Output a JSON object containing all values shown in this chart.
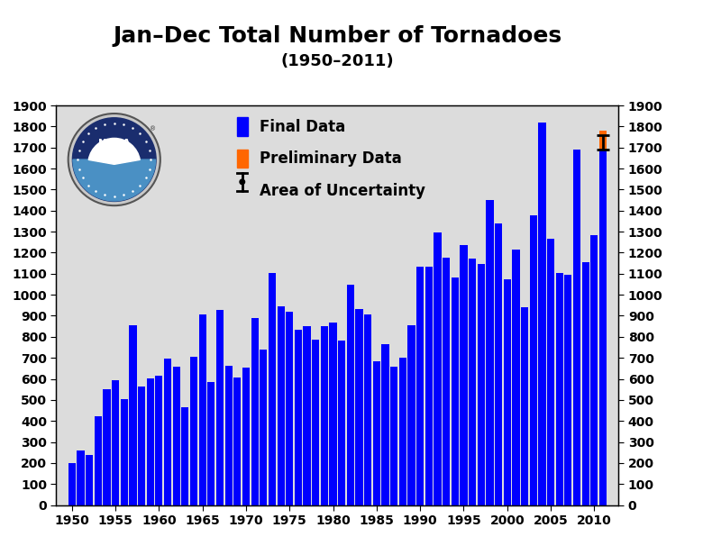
{
  "title": "Jan–Dec Total Number of Tornadoes",
  "subtitle": "(1950–2011)",
  "background_color": "#dcdcdc",
  "bar_color": "#0000ff",
  "prelim_color": "#ff6600",
  "years": [
    1950,
    1951,
    1952,
    1953,
    1954,
    1955,
    1956,
    1957,
    1958,
    1959,
    1960,
    1961,
    1962,
    1963,
    1964,
    1965,
    1966,
    1967,
    1968,
    1969,
    1970,
    1971,
    1972,
    1973,
    1974,
    1975,
    1976,
    1977,
    1978,
    1979,
    1980,
    1981,
    1982,
    1983,
    1984,
    1985,
    1986,
    1987,
    1988,
    1989,
    1990,
    1991,
    1992,
    1993,
    1994,
    1995,
    1996,
    1997,
    1998,
    1999,
    2000,
    2001,
    2002,
    2003,
    2004,
    2005,
    2006,
    2007,
    2008,
    2009,
    2010,
    2011
  ],
  "final_values": [
    201,
    260,
    240,
    421,
    550,
    593,
    504,
    856,
    564,
    604,
    616,
    697,
    657,
    464,
    704,
    906,
    585,
    926,
    660,
    608,
    653,
    888,
    741,
    1102,
    947,
    919,
    835,
    852,
    788,
    852,
    866,
    783,
    1046,
    931,
    907,
    684,
    764,
    656,
    702,
    856,
    1133,
    1132,
    1298,
    1176,
    1082,
    1235,
    1173,
    1148,
    1449,
    1340,
    1075,
    1215,
    939,
    1376,
    1819,
    1265,
    1103,
    1096,
    1692,
    1156,
    1282,
    1690
  ],
  "prelim_value": 90,
  "uncertainty_low": 1690,
  "uncertainty_high": 1760,
  "uncertainty_year": 2011,
  "ylim": [
    0,
    1900
  ],
  "yticks": [
    0,
    100,
    200,
    300,
    400,
    500,
    600,
    700,
    800,
    900,
    1000,
    1100,
    1200,
    1300,
    1400,
    1500,
    1600,
    1700,
    1800,
    1900
  ],
  "xticks": [
    1950,
    1955,
    1960,
    1965,
    1970,
    1975,
    1980,
    1985,
    1990,
    1995,
    2000,
    2005,
    2010
  ],
  "title_fontsize": 18,
  "subtitle_fontsize": 13,
  "tick_fontsize": 10,
  "legend_fontsize": 12,
  "bar_width": 0.85,
  "xlim_left": 1948.2,
  "xlim_right": 2012.8
}
